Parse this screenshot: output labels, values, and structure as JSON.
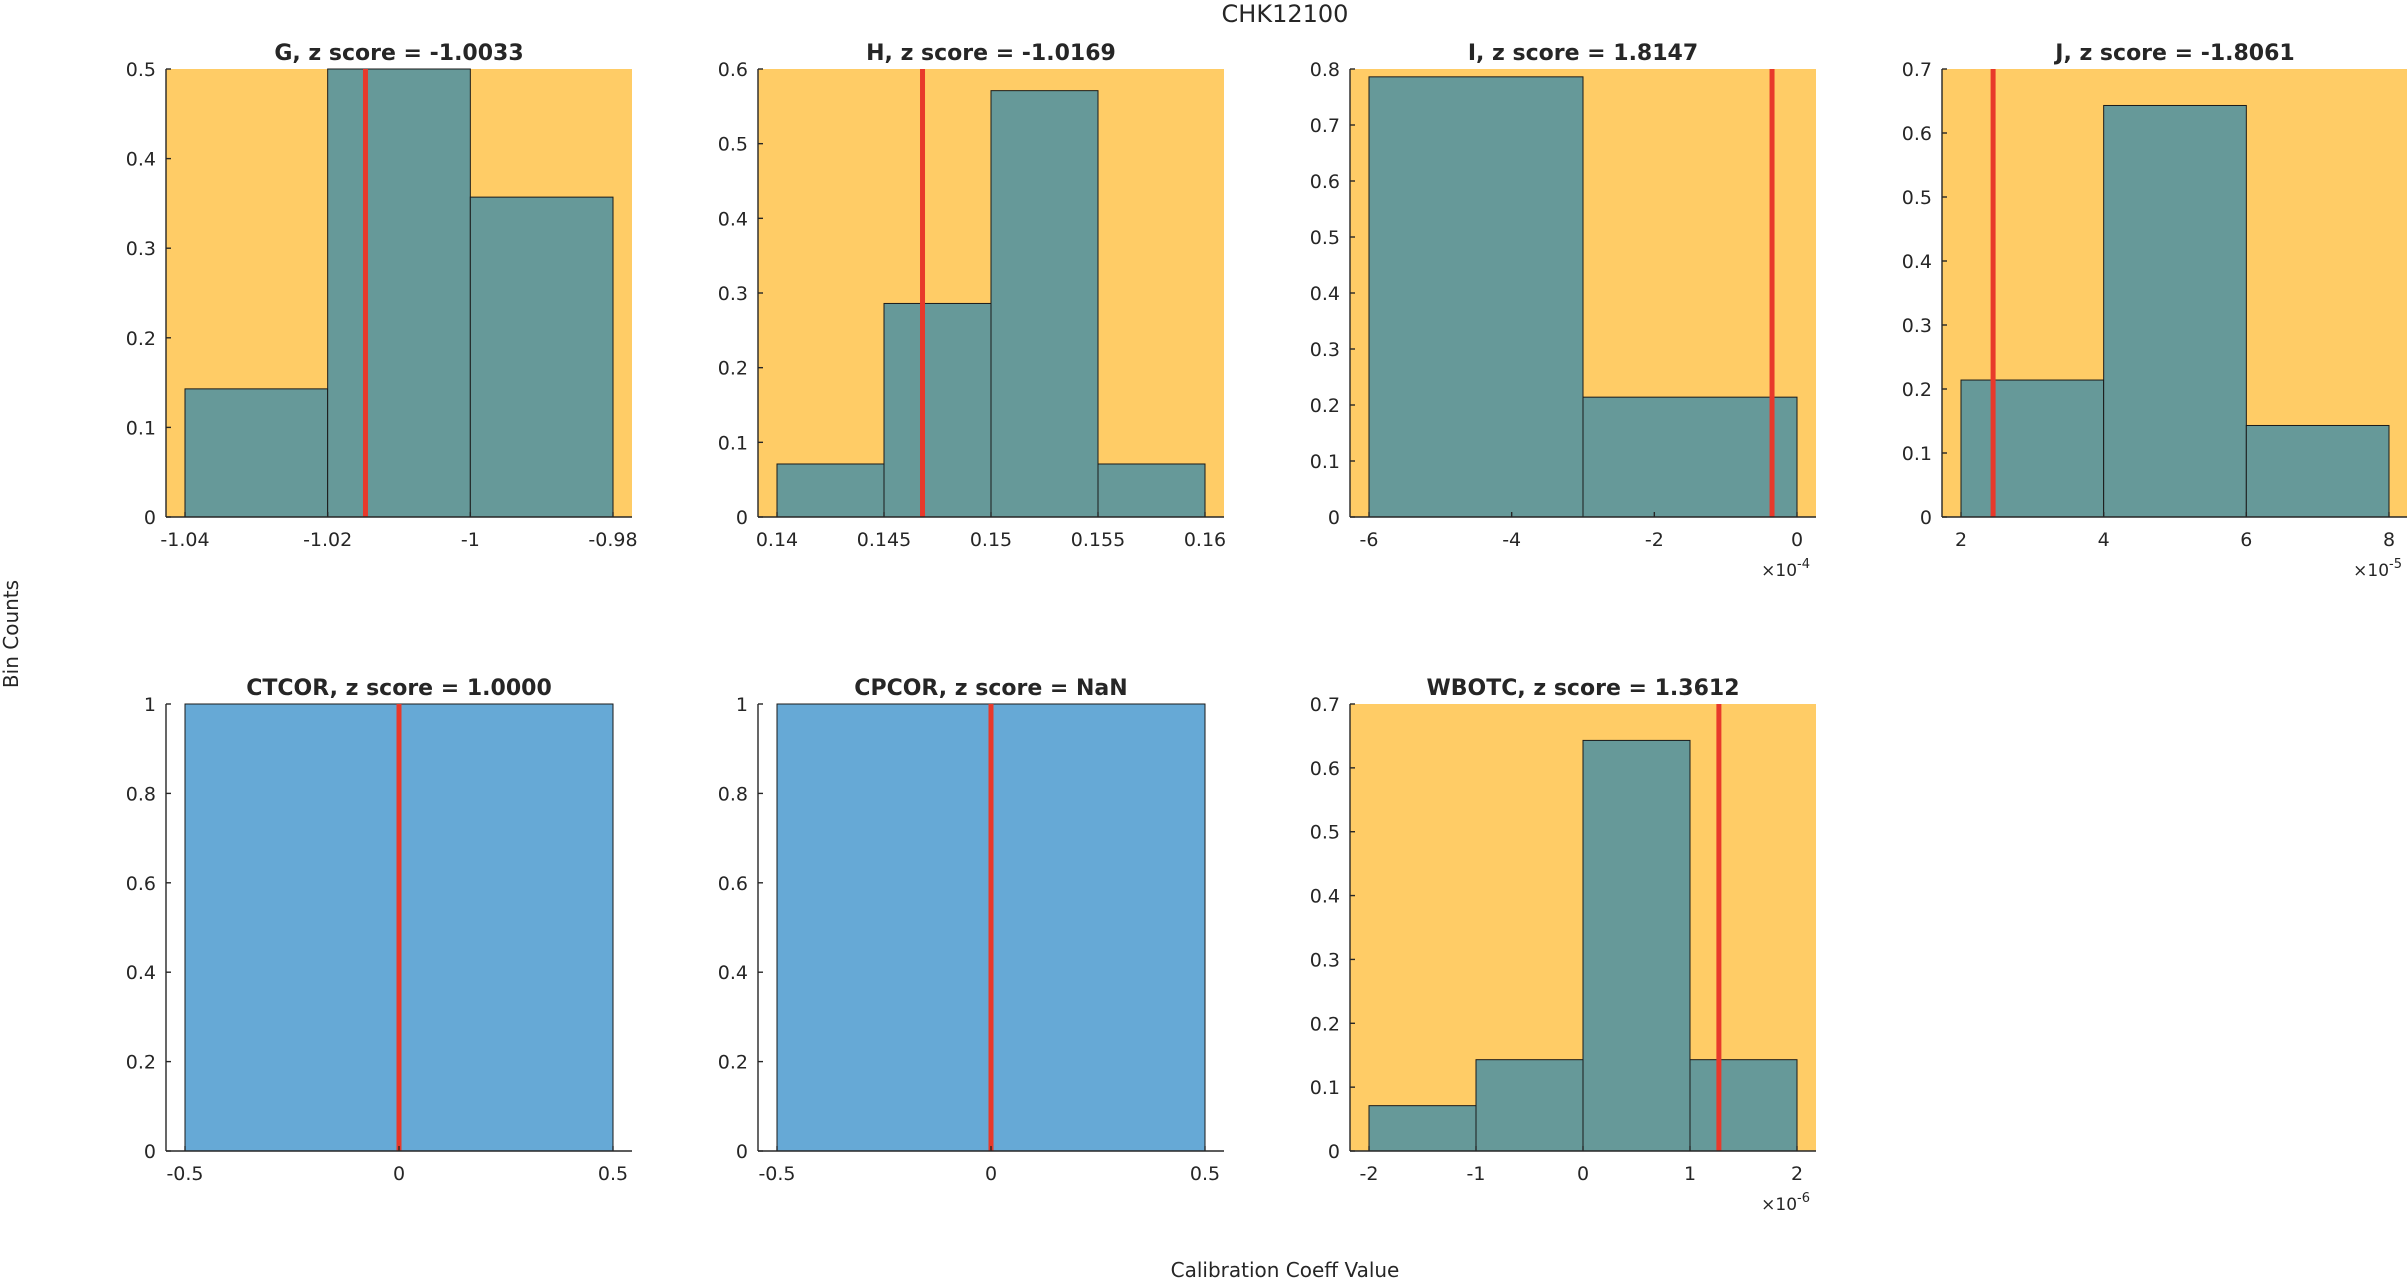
{
  "figure": {
    "title": "CHK12100",
    "ylabel": "Bin Counts",
    "xlabel": "Calibration Coeff Value"
  },
  "colors": {
    "outlier_background": "#FFCC66",
    "normal_bar": "#66A9D6",
    "outlier_bar": "#669999",
    "marker_line": "#E8392B",
    "bar_edge": "#1A1A1A"
  },
  "chart_data": [
    {
      "type": "bar",
      "title": "G, z score = -1.0033",
      "highlight": true,
      "bin_edges": [
        -1.04,
        -1.02,
        -1.0,
        -0.98
      ],
      "values": [
        0.143,
        0.5,
        0.357
      ],
      "marker_x": -1.0147,
      "xlim": [
        -1.04,
        -0.98
      ],
      "ylim": [
        0,
        0.5
      ],
      "xticks": [
        -1.04,
        -1.02,
        -1.0,
        -0.98
      ],
      "xtick_labels": [
        "-1.04",
        "-1.02",
        "-1",
        "-0.98"
      ],
      "yticks": [
        0,
        0.1,
        0.2,
        0.3,
        0.4,
        0.5
      ],
      "ytick_labels": [
        "0",
        "0.1",
        "0.2",
        "0.3",
        "0.4",
        "0.5"
      ],
      "x_exponent": null
    },
    {
      "type": "bar",
      "title": "H, z score = -1.0169",
      "highlight": true,
      "bin_edges": [
        0.14,
        0.145,
        0.15,
        0.155,
        0.16
      ],
      "values": [
        0.071,
        0.286,
        0.571,
        0.071
      ],
      "marker_x": 0.1468,
      "xlim": [
        0.14,
        0.16
      ],
      "ylim": [
        0,
        0.6
      ],
      "xticks": [
        0.14,
        0.145,
        0.15,
        0.155,
        0.16
      ],
      "xtick_labels": [
        "0.14",
        "0.145",
        "0.15",
        "0.155",
        "0.16"
      ],
      "yticks": [
        0,
        0.1,
        0.2,
        0.3,
        0.4,
        0.5,
        0.6
      ],
      "ytick_labels": [
        "0",
        "0.1",
        "0.2",
        "0.3",
        "0.4",
        "0.5",
        "0.6"
      ],
      "x_exponent": null
    },
    {
      "type": "bar",
      "title": "I, z score = 1.8147",
      "highlight": true,
      "bin_edges": [
        -6,
        -3,
        0
      ],
      "values": [
        0.786,
        0.214
      ],
      "marker_x": -0.35,
      "xlim": [
        -6,
        0
      ],
      "ylim": [
        0,
        0.8
      ],
      "xticks": [
        -6,
        -4,
        -2,
        0
      ],
      "xtick_labels": [
        "-6",
        "-4",
        "-2",
        "0"
      ],
      "yticks": [
        0,
        0.1,
        0.2,
        0.3,
        0.4,
        0.5,
        0.6,
        0.7,
        0.8
      ],
      "ytick_labels": [
        "0",
        "0.1",
        "0.2",
        "0.3",
        "0.4",
        "0.5",
        "0.6",
        "0.7",
        "0.8"
      ],
      "x_exponent": {
        "base": "×10",
        "power": "-4"
      }
    },
    {
      "type": "bar",
      "title": "J, z score = -1.8061",
      "highlight": true,
      "bin_edges": [
        2,
        4,
        6,
        8
      ],
      "values": [
        0.214,
        0.643,
        0.143
      ],
      "marker_x": 2.45,
      "xlim": [
        2,
        8
      ],
      "ylim": [
        0,
        0.7
      ],
      "xticks": [
        2,
        4,
        6,
        8
      ],
      "xtick_labels": [
        "2",
        "4",
        "6",
        "8"
      ],
      "yticks": [
        0,
        0.1,
        0.2,
        0.3,
        0.4,
        0.5,
        0.6,
        0.7
      ],
      "ytick_labels": [
        "0",
        "0.1",
        "0.2",
        "0.3",
        "0.4",
        "0.5",
        "0.6",
        "0.7"
      ],
      "x_exponent": {
        "base": "×10",
        "power": "-5"
      }
    },
    {
      "type": "bar",
      "title": "CTCOR, z score = 1.0000",
      "highlight": false,
      "bin_edges": [
        -0.5,
        0.5
      ],
      "values": [
        1
      ],
      "marker_x": 0,
      "xlim": [
        -0.5,
        0.5
      ],
      "ylim": [
        0,
        1
      ],
      "xticks": [
        -0.5,
        0,
        0.5
      ],
      "xtick_labels": [
        "-0.5",
        "0",
        "0.5"
      ],
      "yticks": [
        0,
        0.2,
        0.4,
        0.6,
        0.8,
        1
      ],
      "ytick_labels": [
        "0",
        "0.2",
        "0.4",
        "0.6",
        "0.8",
        "1"
      ],
      "x_exponent": null
    },
    {
      "type": "bar",
      "title": "CPCOR, z score = NaN",
      "highlight": false,
      "bin_edges": [
        -0.5,
        0.5
      ],
      "values": [
        1
      ],
      "marker_x": 0,
      "xlim": [
        -0.5,
        0.5
      ],
      "ylim": [
        0,
        1
      ],
      "xticks": [
        -0.5,
        0,
        0.5
      ],
      "xtick_labels": [
        "-0.5",
        "0",
        "0.5"
      ],
      "yticks": [
        0,
        0.2,
        0.4,
        0.6,
        0.8,
        1
      ],
      "ytick_labels": [
        "0",
        "0.2",
        "0.4",
        "0.6",
        "0.8",
        "1"
      ],
      "x_exponent": null
    },
    {
      "type": "bar",
      "title": "WBOTC, z score = 1.3612",
      "highlight": true,
      "bin_edges": [
        -2,
        -1,
        0,
        1,
        2
      ],
      "values": [
        0.071,
        0.143,
        0.643,
        0.143
      ],
      "marker_x": 1.27,
      "xlim": [
        -2,
        2
      ],
      "ylim": [
        0,
        0.7
      ],
      "xticks": [
        -2,
        -1,
        0,
        1,
        2
      ],
      "xtick_labels": [
        "-2",
        "-1",
        "0",
        "1",
        "2"
      ],
      "yticks": [
        0,
        0.1,
        0.2,
        0.3,
        0.4,
        0.5,
        0.6,
        0.7
      ],
      "ytick_labels": [
        "0",
        "0.1",
        "0.2",
        "0.3",
        "0.4",
        "0.5",
        "0.6",
        "0.7"
      ],
      "x_exponent": {
        "base": "×10",
        "power": "-6"
      }
    }
  ]
}
